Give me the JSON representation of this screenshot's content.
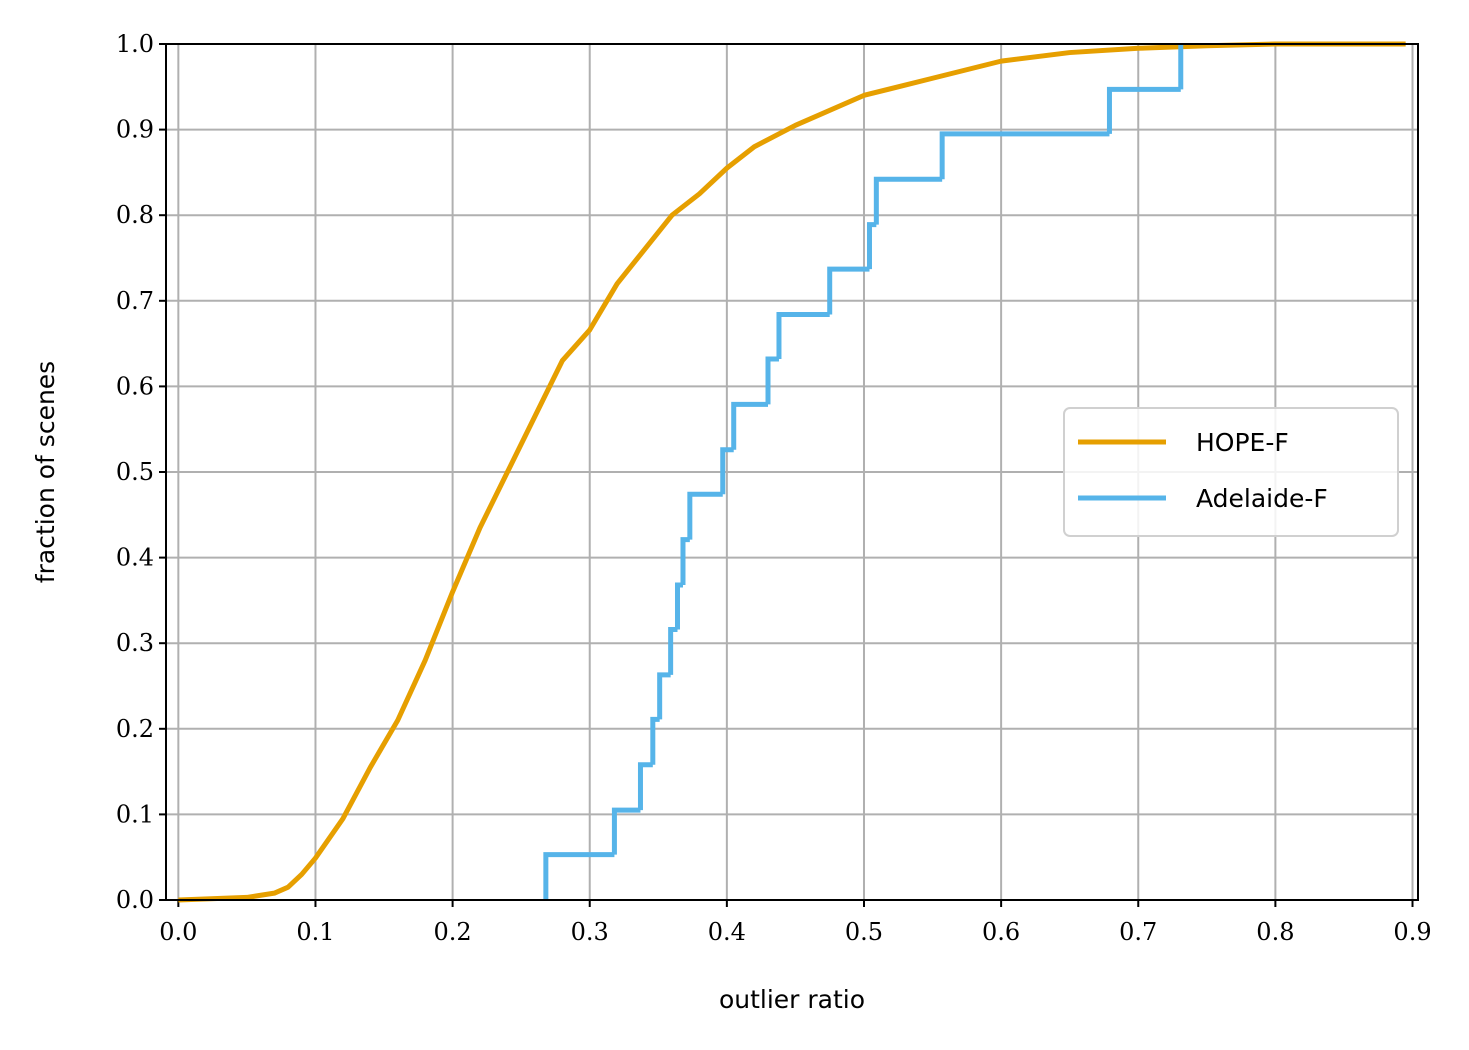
{
  "chart_data": {
    "type": "line",
    "xlabel": "outlier ratio",
    "ylabel": "fraction of scenes",
    "xlim": [
      -0.009,
      0.904
    ],
    "ylim": [
      0,
      1
    ],
    "xticks": [
      {
        "value": 0,
        "label": "0.0"
      },
      0.1,
      0.2,
      0.3,
      0.4,
      0.5,
      0.6,
      0.7,
      0.8,
      0.9
    ],
    "yticks": [
      {
        "value": 0,
        "label": "0.0"
      },
      0.1,
      0.2,
      0.3,
      0.4,
      0.5,
      0.6,
      0.7,
      0.8,
      0.9,
      {
        "value": 1,
        "label": "1.0"
      }
    ],
    "grid": true,
    "legend": "center right",
    "series": [
      {
        "name": "HOPE-F",
        "color": "#e69f00",
        "step": false,
        "x": [
          0,
          0.05,
          0.07,
          0.08,
          0.09,
          0.1,
          0.12,
          0.14,
          0.16,
          0.18,
          0.2,
          0.22,
          0.24,
          0.26,
          0.28,
          0.3,
          0.32,
          0.34,
          0.36,
          0.38,
          0.4,
          0.42,
          0.45,
          0.5,
          0.55,
          0.6,
          0.65,
          0.7,
          0.75,
          0.8,
          0.895
        ],
        "values": [
          0,
          0.003,
          0.008,
          0.015,
          0.03,
          0.049,
          0.095,
          0.155,
          0.21,
          0.28,
          0.36,
          0.435,
          0.5,
          0.565,
          0.63,
          0.666,
          0.72,
          0.76,
          0.8,
          0.825,
          0.855,
          0.88,
          0.905,
          0.94,
          0.96,
          0.98,
          0.99,
          0.995,
          0.998,
          1,
          1
        ]
      },
      {
        "name": "Adelaide-F",
        "color": "#56b4e9",
        "step": true,
        "x": [
          0.268,
          0.318,
          0.337,
          0.346,
          0.351,
          0.359,
          0.364,
          0.368,
          0.373,
          0.397,
          0.405,
          0.43,
          0.438,
          0.475,
          0.504,
          0.509,
          0.557,
          0.679,
          0.731
        ],
        "values": [
          0.053,
          0.105,
          0.158,
          0.211,
          0.263,
          0.316,
          0.368,
          0.421,
          0.474,
          0.526,
          0.579,
          0.632,
          0.684,
          0.737,
          0.789,
          0.842,
          0.895,
          0.947,
          1
        ]
      }
    ]
  }
}
